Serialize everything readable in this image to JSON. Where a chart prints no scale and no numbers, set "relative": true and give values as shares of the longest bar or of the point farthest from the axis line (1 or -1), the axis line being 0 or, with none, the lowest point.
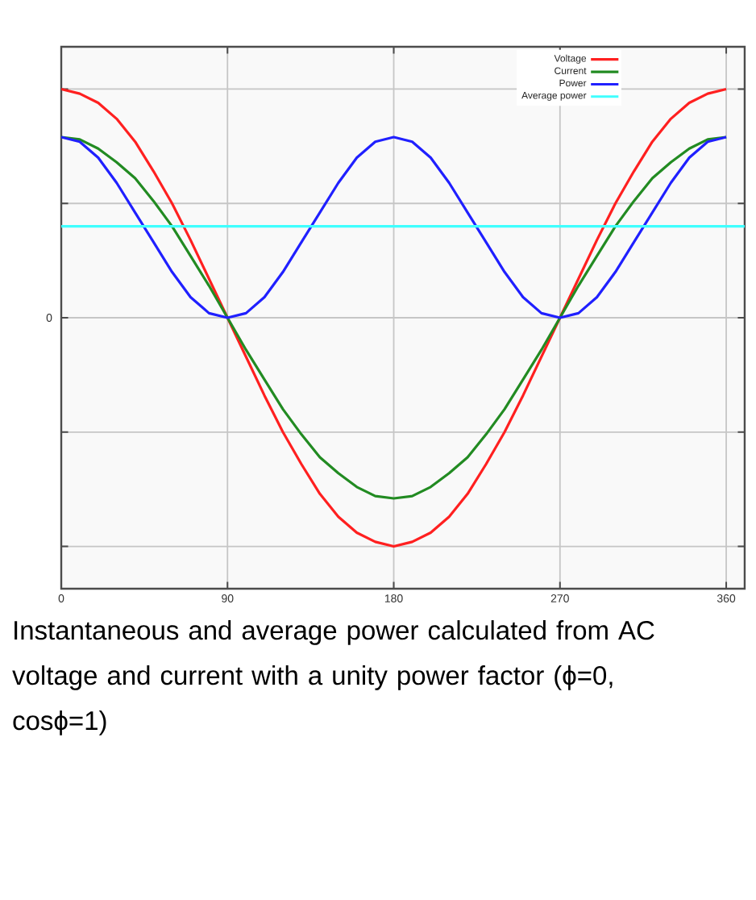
{
  "chart_data": {
    "type": "line",
    "relative": true,
    "x": [
      0,
      10,
      20,
      30,
      40,
      50,
      60,
      70,
      80,
      90,
      100,
      110,
      120,
      130,
      140,
      150,
      160,
      170,
      180,
      190,
      200,
      210,
      220,
      230,
      240,
      250,
      260,
      270,
      280,
      290,
      300,
      310,
      320,
      330,
      340,
      350,
      360
    ],
    "xlim": [
      0,
      370
    ],
    "xticks": [
      0,
      90,
      180,
      270,
      360
    ],
    "grid": true,
    "legend": "top right",
    "line_style": "solid",
    "marker": "none",
    "series": [
      {
        "name": "Voltage",
        "color": "#ff2020",
        "values": [
          1,
          0.98,
          0.94,
          0.87,
          0.77,
          0.64,
          0.5,
          0.34,
          0.17,
          0,
          -0.17,
          -0.34,
          -0.5,
          -0.64,
          -0.77,
          -0.87,
          -0.94,
          -0.98,
          -1,
          -0.98,
          -0.94,
          -0.87,
          -0.77,
          -0.64,
          -0.5,
          -0.34,
          -0.17,
          0,
          0.17,
          0.34,
          0.5,
          0.64,
          0.77,
          0.87,
          0.94,
          0.98,
          1
        ]
      },
      {
        "name": "Current",
        "color": "#228b22",
        "values": [
          0.79,
          0.78,
          0.74,
          0.68,
          0.61,
          0.51,
          0.4,
          0.27,
          0.14,
          0,
          -0.14,
          -0.27,
          -0.4,
          -0.51,
          -0.61,
          -0.68,
          -0.74,
          -0.78,
          -0.79,
          -0.78,
          -0.74,
          -0.68,
          -0.61,
          -0.51,
          -0.4,
          -0.27,
          -0.14,
          0,
          0.14,
          0.27,
          0.4,
          0.51,
          0.61,
          0.68,
          0.74,
          0.78,
          0.79
        ]
      },
      {
        "name": "Power",
        "color": "#2020ff",
        "values": [
          0.79,
          0.77,
          0.7,
          0.59,
          0.46,
          0.33,
          0.2,
          0.09,
          0.02,
          0,
          0.02,
          0.09,
          0.2,
          0.33,
          0.46,
          0.59,
          0.7,
          0.77,
          0.79,
          0.77,
          0.7,
          0.59,
          0.46,
          0.33,
          0.2,
          0.09,
          0.02,
          0,
          0.02,
          0.09,
          0.2,
          0.33,
          0.46,
          0.59,
          0.7,
          0.77,
          0.79
        ]
      },
      {
        "name": "Average power",
        "color": "#40ffff",
        "x": [
          0,
          370
        ],
        "values": [
          0.4,
          0.4
        ]
      }
    ],
    "annotations": [
      "Instantaneous and average power calculated from AC voltage and current with a unity power factor (ϕ=0, cosϕ=1)",
      "0"
    ]
  }
}
